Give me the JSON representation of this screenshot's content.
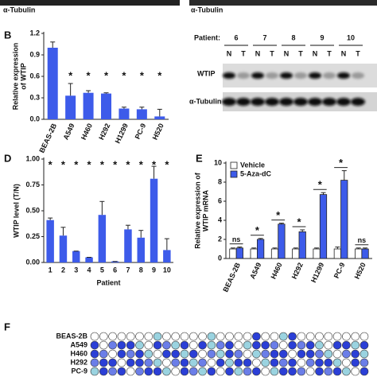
{
  "chart_data": [
    {
      "type": "bar",
      "panel": "B",
      "y_label": [
        "Relative expression",
        "of WTIP"
      ],
      "categories": [
        "BEAS-2B",
        "A549",
        "H460",
        "H292",
        "H1299",
        "PC-9",
        "H520"
      ],
      "values": [
        1.0,
        0.33,
        0.37,
        0.36,
        0.15,
        0.14,
        0.04
      ],
      "errors": [
        0.08,
        0.17,
        0.03,
        0.01,
        0.02,
        0.03,
        0.1
      ],
      "significance": [
        null,
        "*",
        "*",
        "*",
        "*",
        "*",
        "*"
      ],
      "color": "#3d5bea",
      "ylim": [
        0,
        1.2
      ],
      "yticks": [
        {
          "value": 0,
          "label": "0.0"
        },
        0.3,
        0.6,
        0.9,
        1.2
      ]
    },
    {
      "type": "bar",
      "panel": "D",
      "y_label": [
        "WTIP level (T/N)"
      ],
      "x_label": "Patient",
      "categories": [
        "1",
        "2",
        "3",
        "4",
        "5",
        "6",
        "7",
        "8",
        "9",
        "10"
      ],
      "values": [
        0.41,
        0.26,
        0.11,
        0.05,
        0.46,
        0.01,
        0.32,
        0.24,
        0.81,
        0.12
      ],
      "errors": [
        0.02,
        0.08,
        0.0,
        0.0,
        0.13,
        0.0,
        0.04,
        0.07,
        0.12,
        0.11
      ],
      "significance": [
        "*",
        "*",
        "*",
        "*",
        "*",
        "*",
        "*",
        "*",
        "*",
        "*"
      ],
      "color": "#3d5bea",
      "ylim": [
        0,
        1.0
      ],
      "yticks": [
        {
          "value": 0,
          "label": "0.00"
        },
        0.25,
        {
          "value": 0.5,
          "label": "0.50"
        },
        {
          "value": 0.75,
          "label": "0.75"
        },
        {
          "value": 1,
          "label": "1.00"
        }
      ]
    },
    {
      "type": "bar",
      "panel": "E",
      "y_label": [
        "Relative expression of",
        "WTIP mRNA"
      ],
      "categories": [
        "BEAS-2B",
        "A549",
        "H460",
        "H292",
        "H1299",
        "PC-9",
        "H520"
      ],
      "series": [
        {
          "name": "Vehicle",
          "color": "#ffffff",
          "values": [
            1.0,
            1.0,
            1.0,
            1.0,
            1.0,
            1.0,
            1.0
          ],
          "errors": [
            0.1,
            0.1,
            0.1,
            0.1,
            0.1,
            0.2,
            0.1
          ]
        },
        {
          "name": "5-Aza-dC",
          "color": "#3d5bea",
          "values": [
            1.1,
            2.0,
            3.6,
            2.8,
            6.7,
            8.2,
            1.0
          ],
          "errors": [
            0.1,
            0.1,
            0.1,
            0.2,
            0.2,
            1.0,
            0.1
          ]
        }
      ],
      "significance": [
        "ns",
        "*",
        "*",
        "*",
        "*",
        "*",
        "ns"
      ],
      "ylim": [
        0,
        10
      ],
      "yticks": [
        0,
        2,
        4,
        6,
        8,
        10
      ]
    }
  ],
  "top_blot": {
    "left_label": "α-Tubulin",
    "right_label": "α-Tubulin"
  },
  "panel_c": {
    "patient_label": "Patient:",
    "patients": [
      "6",
      "7",
      "8",
      "9",
      "10"
    ],
    "lanes": [
      "N",
      "T"
    ],
    "wtip_label": "WTIP",
    "tubulin_label": "α-Tubulin"
  },
  "panel_f": {
    "panel": "F",
    "rows": [
      "BEAS-2B",
      "A549",
      "H460",
      "H292",
      "PC-9"
    ]
  }
}
